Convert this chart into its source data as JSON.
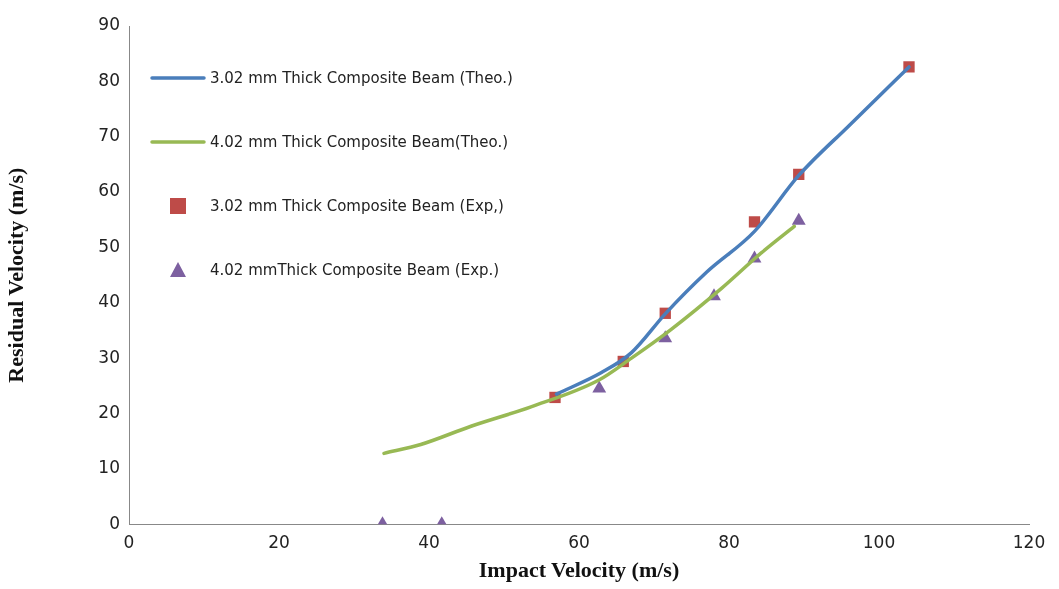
{
  "chart_data": {
    "type": "line",
    "xlabel": "Impact Velocity (m/s)",
    "ylabel": "Residual Velocity (m/s)",
    "xlim": [
      0,
      120
    ],
    "xticks": [
      0,
      20,
      40,
      60,
      80,
      100,
      120
    ],
    "ylim": [
      0,
      90
    ],
    "yticks": [
      0,
      10,
      20,
      30,
      40,
      50,
      60,
      70,
      80,
      90
    ],
    "grid": false,
    "legend": "top left",
    "series": [
      {
        "name": "3.02 mm Thick Composite Beam (Theo.)",
        "type": "line",
        "marker": "none",
        "color": "#4a7ebb",
        "x": [
          57,
          63,
          67,
          71.5,
          77,
          83.4,
          89.3,
          96,
          104
        ],
        "values": [
          23.5,
          27.4,
          31,
          38,
          45.5,
          52.9,
          63,
          72,
          82.6
        ]
      },
      {
        "name": "4.02 mm Thick Composite Beam(Theo.)",
        "type": "line",
        "marker": "none",
        "color": "#98b954",
        "x": [
          34,
          38.9,
          45.6,
          53.6,
          62.6,
          67,
          72.3,
          79,
          84.3,
          88.7
        ],
        "values": [
          12.8,
          14.4,
          17.7,
          21.2,
          26,
          30,
          35.2,
          42.6,
          49,
          53.8
        ]
      },
      {
        "name": "3.02 mm Thick Composite Beam (Exp,)",
        "type": "scatter",
        "marker": "square",
        "color": "#be4b48",
        "x": [
          56.8,
          65.9,
          71.5,
          83.4,
          89.3,
          104
        ],
        "values": [
          22.9,
          29.4,
          38.1,
          54.6,
          63.2,
          82.6
        ]
      },
      {
        "name": "4.02 mmThick Composite Beam (Exp.)",
        "type": "scatter",
        "marker": "triangle",
        "color": "#7d60a0",
        "x": [
          33.8,
          41.7,
          62.7,
          71.5,
          78,
          83.4,
          89.3
        ],
        "values": [
          0,
          0,
          24.5,
          33.6,
          41.2,
          48,
          54.8
        ]
      }
    ]
  }
}
